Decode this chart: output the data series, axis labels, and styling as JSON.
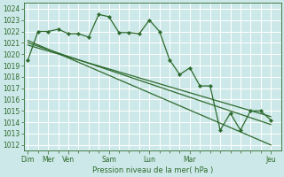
{
  "bg_color": "#cde8e8",
  "grid_color": "#b8d8d8",
  "plot_bg": "#cde8e8",
  "line_color": "#2d6a2d",
  "ylabel_text": "Pression niveau de la mer( hPa )",
  "ylim": [
    1011.5,
    1024.5
  ],
  "yticks": [
    1012,
    1013,
    1014,
    1015,
    1016,
    1017,
    1018,
    1019,
    1020,
    1021,
    1022,
    1023,
    1024
  ],
  "xlim": [
    -0.2,
    12.5
  ],
  "xtick_major_labels": [
    "Dim",
    "Mer",
    "Ven",
    "Sam",
    "Lun",
    "Mar",
    "Jeu"
  ],
  "xtick_major_positions": [
    0,
    1,
    2,
    4,
    6,
    8,
    12
  ],
  "xtick_minor_positions": [
    0,
    0.5,
    1,
    1.5,
    2,
    2.5,
    3,
    3.5,
    4,
    4.5,
    5,
    5.5,
    6,
    6.5,
    7,
    7.5,
    8,
    8.5,
    9,
    9.5,
    10,
    10.5,
    11,
    11.5,
    12
  ],
  "series_detailed": {
    "x": [
      0,
      0.5,
      1.0,
      1.5,
      2.0,
      2.5,
      3.0,
      3.5,
      4.0,
      4.5,
      5.0,
      5.5,
      6.0,
      6.5,
      7.0,
      7.5,
      8.0,
      8.5,
      9.0,
      9.5,
      10.0,
      10.5,
      11.0,
      11.5,
      12.0
    ],
    "y": [
      1019.5,
      1022.0,
      1022.0,
      1022.2,
      1021.8,
      1021.8,
      1021.5,
      1023.5,
      1023.3,
      1021.9,
      1021.9,
      1021.8,
      1023.0,
      1022.0,
      1019.5,
      1018.2,
      1018.8,
      1017.2,
      1017.2,
      1013.3,
      1014.8,
      1013.3,
      1015.0,
      1015.0,
      1014.2
    ]
  },
  "series_trends": [
    {
      "x": [
        0,
        12
      ],
      "y": [
        1020.8,
        1014.5
      ]
    },
    {
      "x": [
        0,
        12
      ],
      "y": [
        1021.0,
        1013.8
      ]
    },
    {
      "x": [
        0,
        12
      ],
      "y": [
        1021.2,
        1012.0
      ]
    }
  ]
}
